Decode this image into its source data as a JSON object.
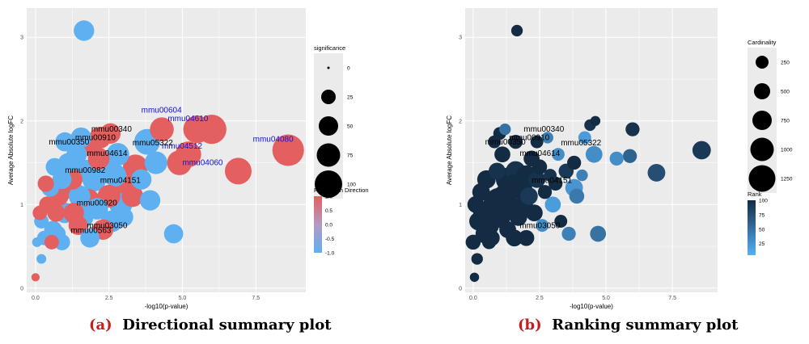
{
  "captions": [
    {
      "tag": "(a)",
      "text": "Directional summary plot"
    },
    {
      "tag": "(b)",
      "text": "Ranking summary plot"
    }
  ],
  "colors": {
    "panel_bg": "#ebebeb",
    "grid": "#ffffff",
    "up": "#e45f5f",
    "down": "#5fb0f0",
    "rank_high": "#56b1f7",
    "rank_low": "#132b43",
    "caption_tag": "#c41e1e",
    "label_blue": "#1010e0"
  },
  "chart_data": [
    {
      "type": "scatter",
      "xlabel": "-log10(p-value)",
      "ylabel": "Average Absolute logFC",
      "xlim": [
        -0.3,
        9.2
      ],
      "ylim": [
        -0.05,
        3.35
      ],
      "x_ticks": [
        0,
        2.5,
        5,
        7.5
      ],
      "x_tick_labels": [
        "0.0",
        "2.5",
        "5.0",
        "7.5"
      ],
      "y_ticks": [
        0,
        1,
        2,
        3
      ],
      "y_tick_labels": [
        "0",
        "1",
        "2",
        "3"
      ],
      "grid": true,
      "legends": [
        {
          "kind": "size",
          "title": "significance",
          "labels": [
            "0",
            "25",
            "50",
            "75",
            "100"
          ]
        },
        {
          "kind": "color",
          "title": "Regulation Direction",
          "labels": [
            "1.0",
            "0.5",
            "0.0",
            "-0.5",
            "-1.0"
          ],
          "values": [
            1,
            0.5,
            0,
            -0.5,
            -1
          ]
        }
      ],
      "annotations": [
        {
          "text": "mmu00604",
          "x": 3.6,
          "y": 2.1,
          "color": "blue"
        },
        {
          "text": "mmu04610",
          "x": 4.5,
          "y": 2.0,
          "color": "blue"
        },
        {
          "text": "mmu04080",
          "x": 7.4,
          "y": 1.75,
          "color": "blue"
        },
        {
          "text": "mmu04512",
          "x": 4.3,
          "y": 1.67,
          "color": "blue"
        },
        {
          "text": "mmu04060",
          "x": 5.0,
          "y": 1.47,
          "color": "blue"
        },
        {
          "text": "mmu00340",
          "x": 1.9,
          "y": 1.87,
          "color": "black"
        },
        {
          "text": "mmu00910",
          "x": 1.35,
          "y": 1.77,
          "color": "black"
        },
        {
          "text": "mmu00350",
          "x": 0.45,
          "y": 1.72,
          "color": "black"
        },
        {
          "text": "mmu05322",
          "x": 3.3,
          "y": 1.71,
          "color": "black"
        },
        {
          "text": "mmu04614",
          "x": 1.75,
          "y": 1.58,
          "color": "black"
        },
        {
          "text": "mmu00982",
          "x": 1.0,
          "y": 1.38,
          "color": "black"
        },
        {
          "text": "mmu04151",
          "x": 2.2,
          "y": 1.26,
          "color": "black"
        },
        {
          "text": "mmu00920",
          "x": 1.4,
          "y": 0.99,
          "color": "black"
        },
        {
          "text": "mmu03050",
          "x": 1.75,
          "y": 0.72,
          "color": "black"
        },
        {
          "text": "mmu00563",
          "x": 1.2,
          "y": 0.66,
          "color": "black"
        }
      ],
      "points": [
        {
          "x": 1.65,
          "y": 3.08,
          "size": 35,
          "color": -1
        },
        {
          "x": 4.7,
          "y": 0.65,
          "size": 30,
          "color": -1
        },
        {
          "x": 8.6,
          "y": 1.65,
          "size": 95,
          "color": 1
        },
        {
          "x": 6.0,
          "y": 1.9,
          "size": 80,
          "color": 1
        },
        {
          "x": 5.5,
          "y": 1.9,
          "size": 70,
          "color": 1
        },
        {
          "x": 6.9,
          "y": 1.4,
          "size": 65,
          "color": 1
        },
        {
          "x": 5.2,
          "y": 1.6,
          "size": 60,
          "color": 1
        },
        {
          "x": 4.9,
          "y": 1.5,
          "size": 55,
          "color": 1
        },
        {
          "x": 4.3,
          "y": 1.9,
          "size": 50,
          "color": 1
        },
        {
          "x": 3.8,
          "y": 1.75,
          "size": 60,
          "color": -1
        },
        {
          "x": 3.4,
          "y": 1.45,
          "size": 55,
          "color": 1
        },
        {
          "x": 3.1,
          "y": 1.2,
          "size": 50,
          "color": 1
        },
        {
          "x": 2.9,
          "y": 1.0,
          "size": 45,
          "color": -1
        },
        {
          "x": 2.6,
          "y": 0.8,
          "size": 40,
          "color": -1
        },
        {
          "x": 2.4,
          "y": 1.5,
          "size": 45,
          "color": -1
        },
        {
          "x": 2.2,
          "y": 1.8,
          "size": 40,
          "color": 1
        },
        {
          "x": 2.0,
          "y": 1.3,
          "size": 50,
          "color": -1
        },
        {
          "x": 1.8,
          "y": 1.05,
          "size": 45,
          "color": 1
        },
        {
          "x": 1.6,
          "y": 0.85,
          "size": 40,
          "color": -1
        },
        {
          "x": 1.4,
          "y": 1.6,
          "size": 35,
          "color": -1
        },
        {
          "x": 1.2,
          "y": 1.2,
          "size": 40,
          "color": 1
        },
        {
          "x": 1.0,
          "y": 0.9,
          "size": 35,
          "color": -1
        },
        {
          "x": 0.8,
          "y": 1.1,
          "size": 30,
          "color": 1
        },
        {
          "x": 0.6,
          "y": 0.7,
          "size": 25,
          "color": -1
        },
        {
          "x": 0.4,
          "y": 1.0,
          "size": 20,
          "color": 1
        },
        {
          "x": 0.2,
          "y": 0.8,
          "size": 15,
          "color": -1
        },
        {
          "x": 1.9,
          "y": 1.7,
          "size": 40,
          "color": 1
        },
        {
          "x": 2.7,
          "y": 1.35,
          "size": 45,
          "color": -1
        },
        {
          "x": 3.3,
          "y": 1.1,
          "size": 40,
          "color": 1
        },
        {
          "x": 3.6,
          "y": 1.3,
          "size": 35,
          "color": -1
        },
        {
          "x": 2.5,
          "y": 1.1,
          "size": 45,
          "color": 1
        },
        {
          "x": 2.1,
          "y": 0.95,
          "size": 40,
          "color": -1
        },
        {
          "x": 1.7,
          "y": 1.4,
          "size": 45,
          "color": -1
        },
        {
          "x": 1.3,
          "y": 0.9,
          "size": 35,
          "color": 1
        },
        {
          "x": 1.1,
          "y": 1.5,
          "size": 30,
          "color": -1
        },
        {
          "x": 0.9,
          "y": 1.3,
          "size": 30,
          "color": -1
        },
        {
          "x": 0.7,
          "y": 0.9,
          "size": 25,
          "color": 1
        },
        {
          "x": 0.5,
          "y": 1.2,
          "size": 25,
          "color": -1
        },
        {
          "x": 0.3,
          "y": 0.6,
          "size": 15,
          "color": -1
        },
        {
          "x": 0.15,
          "y": 0.9,
          "size": 15,
          "color": 1
        },
        {
          "x": 1.5,
          "y": 1.1,
          "size": 40,
          "color": -1
        },
        {
          "x": 2.3,
          "y": 0.7,
          "size": 35,
          "color": 1
        },
        {
          "x": 2.8,
          "y": 1.6,
          "size": 45,
          "color": -1
        },
        {
          "x": 3.0,
          "y": 0.85,
          "size": 30,
          "color": -1
        },
        {
          "x": 1.0,
          "y": 1.75,
          "size": 30,
          "color": -1
        },
        {
          "x": 1.25,
          "y": 1.3,
          "size": 35,
          "color": 1
        },
        {
          "x": 0.55,
          "y": 0.55,
          "size": 15,
          "color": 1
        },
        {
          "x": 0.05,
          "y": 0.55,
          "size": 5,
          "color": -1
        },
        {
          "x": 0.2,
          "y": 0.35,
          "size": 5,
          "color": -1
        },
        {
          "x": 0.0,
          "y": 0.13,
          "size": 3,
          "color": 1
        },
        {
          "x": 0.75,
          "y": 0.65,
          "size": 20,
          "color": -1
        },
        {
          "x": 1.45,
          "y": 0.75,
          "size": 30,
          "color": 1
        },
        {
          "x": 1.85,
          "y": 0.6,
          "size": 30,
          "color": -1
        },
        {
          "x": 2.55,
          "y": 1.85,
          "size": 35,
          "color": 1
        },
        {
          "x": 0.35,
          "y": 1.25,
          "size": 20,
          "color": 1
        },
        {
          "x": 0.9,
          "y": 0.55,
          "size": 20,
          "color": -1
        },
        {
          "x": 1.55,
          "y": 1.8,
          "size": 35,
          "color": -1
        },
        {
          "x": 3.9,
          "y": 1.05,
          "size": 35,
          "color": -1
        },
        {
          "x": 2.15,
          "y": 1.55,
          "size": 40,
          "color": 1
        },
        {
          "x": 0.65,
          "y": 1.45,
          "size": 25,
          "color": -1
        },
        {
          "x": 4.1,
          "y": 1.5,
          "size": 45,
          "color": -1
        }
      ]
    },
    {
      "type": "scatter",
      "xlabel": "-log10(p-value)",
      "ylabel": "Average Absolute logFC",
      "xlim": [
        -0.3,
        9.2
      ],
      "ylim": [
        -0.05,
        3.35
      ],
      "x_ticks": [
        0,
        2.5,
        5,
        7.5
      ],
      "x_tick_labels": [
        "0.0",
        "2.5",
        "5.0",
        "7.5"
      ],
      "y_ticks": [
        0,
        1,
        2,
        3
      ],
      "y_tick_labels": [
        "0",
        "1",
        "2",
        "3"
      ],
      "grid": true,
      "legends": [
        {
          "kind": "size",
          "title": "Cardinality",
          "labels": [
            "250",
            "500",
            "750",
            "1000",
            "1250"
          ]
        },
        {
          "kind": "color",
          "title": "Rank",
          "labels": [
            "100",
            "75",
            "50",
            "25"
          ],
          "values": [
            100,
            75,
            50,
            25
          ]
        }
      ],
      "annotations": [
        {
          "text": "mmu00340",
          "x": 1.9,
          "y": 1.87,
          "color": "black"
        },
        {
          "text": "mmu00910",
          "x": 1.35,
          "y": 1.77,
          "color": "black"
        },
        {
          "text": "mmu00350",
          "x": 0.45,
          "y": 1.72,
          "color": "black"
        },
        {
          "text": "mmu05322",
          "x": 3.3,
          "y": 1.71,
          "color": "black"
        },
        {
          "text": "mmu04614",
          "x": 1.75,
          "y": 1.58,
          "color": "black"
        },
        {
          "text": "mmu04151",
          "x": 2.2,
          "y": 1.26,
          "color": "black"
        },
        {
          "text": "mmu03050",
          "x": 1.75,
          "y": 0.72,
          "color": "black"
        }
      ],
      "points": [
        {
          "x": 1.65,
          "y": 3.08,
          "size": 150,
          "rank": 100
        },
        {
          "x": 8.6,
          "y": 1.65,
          "size": 500,
          "rank": 90
        },
        {
          "x": 6.9,
          "y": 1.38,
          "size": 450,
          "rank": 75
        },
        {
          "x": 6.0,
          "y": 1.9,
          "size": 250,
          "rank": 95
        },
        {
          "x": 5.9,
          "y": 1.58,
          "size": 250,
          "rank": 60
        },
        {
          "x": 5.4,
          "y": 1.55,
          "size": 250,
          "rank": 30
        },
        {
          "x": 4.7,
          "y": 0.65,
          "size": 350,
          "rank": 50
        },
        {
          "x": 4.55,
          "y": 1.6,
          "size": 400,
          "rank": 30
        },
        {
          "x": 4.4,
          "y": 1.95,
          "size": 150,
          "rank": 95
        },
        {
          "x": 4.6,
          "y": 2.0,
          "size": 100,
          "rank": 100
        },
        {
          "x": 4.2,
          "y": 1.8,
          "size": 200,
          "rank": 20
        },
        {
          "x": 3.6,
          "y": 0.65,
          "size": 250,
          "rank": 40
        },
        {
          "x": 3.9,
          "y": 1.1,
          "size": 300,
          "rank": 45
        },
        {
          "x": 3.8,
          "y": 1.2,
          "size": 450,
          "rank": 25
        },
        {
          "x": 3.5,
          "y": 1.4,
          "size": 300,
          "rank": 90
        },
        {
          "x": 3.2,
          "y": 1.6,
          "size": 200,
          "rank": 30
        },
        {
          "x": 3.0,
          "y": 1.0,
          "size": 350,
          "rank": 20
        },
        {
          "x": 2.8,
          "y": 1.8,
          "size": 150,
          "rank": 40
        },
        {
          "x": 2.6,
          "y": 0.75,
          "size": 200,
          "rank": 30
        },
        {
          "x": 2.4,
          "y": 1.3,
          "size": 400,
          "rank": 95
        },
        {
          "x": 2.2,
          "y": 1.55,
          "size": 350,
          "rank": 100
        },
        {
          "x": 2.0,
          "y": 0.6,
          "size": 350,
          "rank": 100
        },
        {
          "x": 1.8,
          "y": 1.2,
          "size": 800,
          "rank": 100
        },
        {
          "x": 1.6,
          "y": 1.4,
          "size": 600,
          "rank": 95
        },
        {
          "x": 1.4,
          "y": 0.95,
          "size": 700,
          "rank": 100
        },
        {
          "x": 1.2,
          "y": 1.1,
          "size": 900,
          "rank": 100
        },
        {
          "x": 1.0,
          "y": 0.85,
          "size": 700,
          "rank": 100
        },
        {
          "x": 0.8,
          "y": 1.0,
          "size": 800,
          "rank": 100
        },
        {
          "x": 0.6,
          "y": 0.75,
          "size": 600,
          "rank": 100
        },
        {
          "x": 0.4,
          "y": 0.9,
          "size": 700,
          "rank": 100
        },
        {
          "x": 0.2,
          "y": 0.8,
          "size": 500,
          "rank": 100
        },
        {
          "x": 0.1,
          "y": 1.0,
          "size": 400,
          "rank": 100
        },
        {
          "x": 0.3,
          "y": 1.15,
          "size": 450,
          "rank": 100
        },
        {
          "x": 0.5,
          "y": 1.3,
          "size": 500,
          "rank": 100
        },
        {
          "x": 0.7,
          "y": 0.6,
          "size": 350,
          "rank": 100
        },
        {
          "x": 0.9,
          "y": 1.4,
          "size": 400,
          "rank": 95
        },
        {
          "x": 1.1,
          "y": 1.6,
          "size": 350,
          "rank": 100
        },
        {
          "x": 1.3,
          "y": 0.7,
          "size": 400,
          "rank": 100
        },
        {
          "x": 1.5,
          "y": 1.25,
          "size": 500,
          "rank": 100
        },
        {
          "x": 1.7,
          "y": 0.85,
          "size": 450,
          "rank": 100
        },
        {
          "x": 1.9,
          "y": 1.0,
          "size": 500,
          "rank": 100
        },
        {
          "x": 2.1,
          "y": 1.1,
          "size": 450,
          "rank": 90
        },
        {
          "x": 2.3,
          "y": 0.9,
          "size": 400,
          "rank": 100
        },
        {
          "x": 2.5,
          "y": 1.45,
          "size": 300,
          "rank": 100
        },
        {
          "x": 2.7,
          "y": 1.15,
          "size": 250,
          "rank": 100
        },
        {
          "x": 2.9,
          "y": 1.35,
          "size": 200,
          "rank": 95
        },
        {
          "x": 3.1,
          "y": 1.25,
          "size": 250,
          "rank": 100
        },
        {
          "x": 3.3,
          "y": 0.8,
          "size": 200,
          "rank": 100
        },
        {
          "x": 0.0,
          "y": 0.55,
          "size": 300,
          "rank": 100
        },
        {
          "x": 0.15,
          "y": 0.35,
          "size": 150,
          "rank": 100
        },
        {
          "x": 0.05,
          "y": 0.13,
          "size": 80,
          "rank": 100
        },
        {
          "x": 0.6,
          "y": 0.55,
          "size": 250,
          "rank": 100
        },
        {
          "x": 1.0,
          "y": 1.85,
          "size": 200,
          "rank": 100
        },
        {
          "x": 1.2,
          "y": 1.9,
          "size": 150,
          "rank": 50
        },
        {
          "x": 0.8,
          "y": 1.75,
          "size": 200,
          "rank": 100
        },
        {
          "x": 1.6,
          "y": 1.75,
          "size": 250,
          "rank": 100
        },
        {
          "x": 2.4,
          "y": 1.75,
          "size": 200,
          "rank": 100
        },
        {
          "x": 3.8,
          "y": 1.5,
          "size": 250,
          "rank": 100
        },
        {
          "x": 4.1,
          "y": 1.35,
          "size": 150,
          "rank": 40
        },
        {
          "x": 1.3,
          "y": 1.3,
          "size": 900,
          "rank": 100
        },
        {
          "x": 0.95,
          "y": 1.05,
          "size": 1000,
          "rank": 100
        },
        {
          "x": 0.45,
          "y": 0.65,
          "size": 550,
          "rank": 100
        },
        {
          "x": 2.0,
          "y": 1.35,
          "size": 600,
          "rank": 100
        },
        {
          "x": 1.55,
          "y": 0.6,
          "size": 400,
          "rank": 100
        }
      ]
    }
  ]
}
